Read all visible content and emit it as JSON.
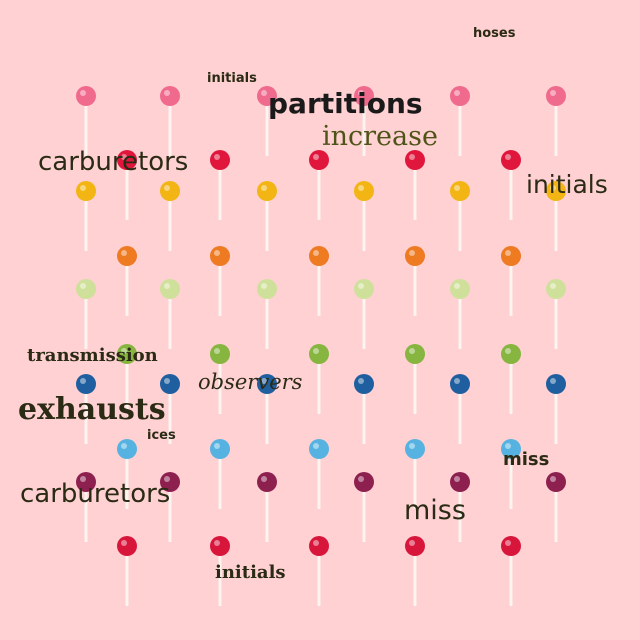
{
  "scene": {
    "background_color": "#ffd1d3",
    "stick_color": "#fbf4f1",
    "lollipop_rows": [
      {
        "color": "#f06a8e"
      },
      {
        "color": "#e0163c"
      },
      {
        "color": "#f3b513"
      },
      {
        "color": "#ee7a22"
      },
      {
        "color": "#cfe09a"
      },
      {
        "color": "#86b540"
      },
      {
        "color": "#1f5f9f"
      },
      {
        "color": "#56b2e0"
      },
      {
        "color": "#8e2050"
      },
      {
        "color": "#d8163c"
      }
    ]
  },
  "words": {
    "w1": "hoses",
    "w2": "initials",
    "w3": "partitions",
    "w4": "increase",
    "w5": "carburetors",
    "w6": "initials",
    "w7": "transmission",
    "w8": "observers",
    "w9": "exhausts",
    "w10": "ices",
    "w11": "miss",
    "w12": "carburetors",
    "w13": "miss",
    "w14": "initials"
  },
  "word_colors": {
    "dark": "#2b2a14",
    "olive": "#4e5418",
    "black": "#1a1a1a"
  }
}
